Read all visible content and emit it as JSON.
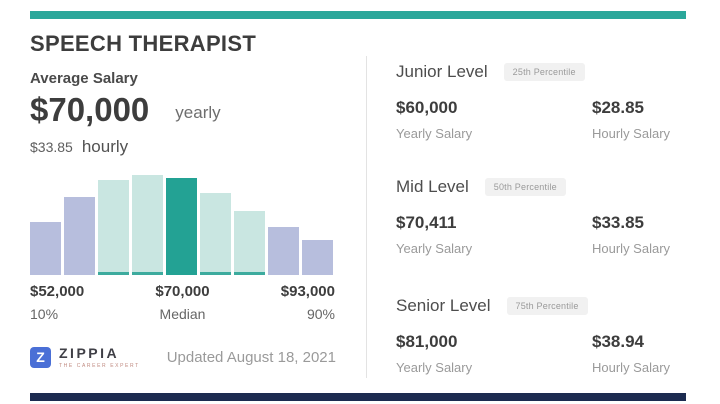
{
  "page": {
    "background": "#ffffff",
    "top_bar_color": "#2aa79a",
    "bottom_bar_color": "#1c2b50"
  },
  "header": {
    "title": "SPEECH THERAPIST"
  },
  "average_salary": {
    "label": "Average Salary",
    "yearly_amount": "$70,000",
    "yearly_unit": "yearly",
    "hourly_amount": "$33.85",
    "hourly_unit": "hourly"
  },
  "chart_data": {
    "type": "bar",
    "title": "Salary distribution histogram (no y-axis shown; heights relative, max = 100)",
    "bars": [
      {
        "rel_height": 53,
        "style": "lavender"
      },
      {
        "rel_height": 78,
        "style": "lavender"
      },
      {
        "rel_height": 95,
        "style": "mint"
      },
      {
        "rel_height": 100,
        "style": "mint"
      },
      {
        "rel_height": 97,
        "style": "dark_teal"
      },
      {
        "rel_height": 82,
        "style": "mint"
      },
      {
        "rel_height": 64,
        "style": "mint"
      },
      {
        "rel_height": 48,
        "style": "lavender"
      },
      {
        "rel_height": 35,
        "style": "lavender"
      }
    ],
    "highlighted_bar_index": 4,
    "palette": {
      "lavender": "#b7bedd",
      "mint": "#c9e6e1",
      "mint_base_strip": "#3dab9e",
      "dark_teal": "#23a294"
    },
    "axis": {
      "y_axis_visible": false,
      "gridlines": false
    },
    "x_labels": [
      {
        "amount": "$52,000",
        "caption": "10%"
      },
      {
        "amount": "$70,000",
        "caption": "Median"
      },
      {
        "amount": "$93,000",
        "caption": "90%"
      }
    ]
  },
  "levels": [
    {
      "name": "Junior Level",
      "percentile": "25th Percentile",
      "yearly_amount": "$60,000",
      "yearly_label": "Yearly Salary",
      "hourly_amount": "$28.85",
      "hourly_label": "Hourly Salary"
    },
    {
      "name": "Mid Level",
      "percentile": "50th Percentile",
      "yearly_amount": "$70,411",
      "yearly_label": "Yearly Salary",
      "hourly_amount": "$33.85",
      "hourly_label": "Hourly Salary"
    },
    {
      "name": "Senior Level",
      "percentile": "75th Percentile",
      "yearly_amount": "$81,000",
      "yearly_label": "Yearly Salary",
      "hourly_amount": "$38.94",
      "hourly_label": "Hourly Salary"
    }
  ],
  "footer": {
    "brand_letter": "Z",
    "brand": "ZIPPIA",
    "brand_tagline": "THE CAREER EXPERT",
    "updated": "Updated August 18, 2021"
  }
}
